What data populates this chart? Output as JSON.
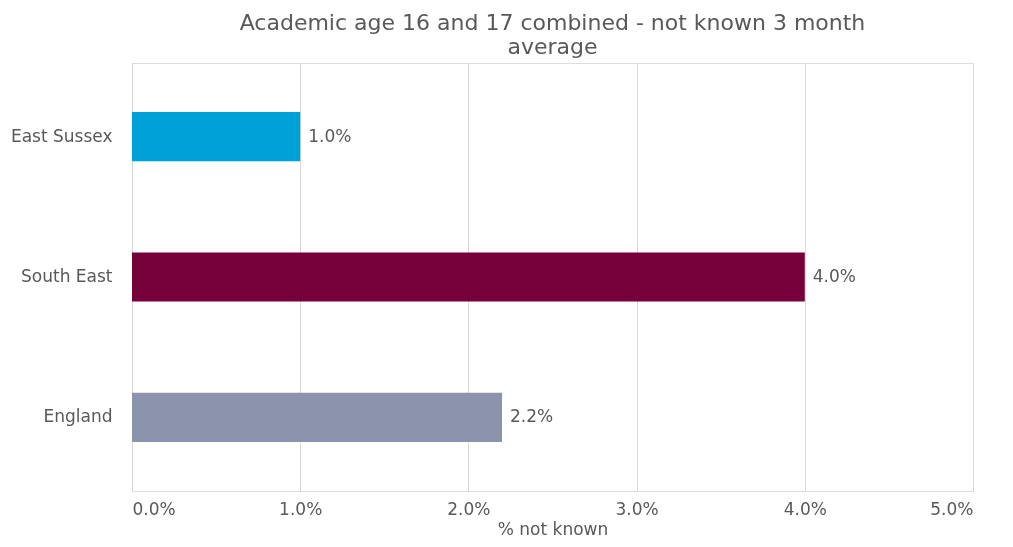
{
  "chart_data": {
    "type": "bar",
    "orientation": "horizontal",
    "title": "Academic age 16 and 17 combined  - not known 3 month average",
    "xlabel": "% not known",
    "categories": [
      "East Sussex",
      "South East",
      "England"
    ],
    "values": [
      1.0,
      4.0,
      2.2
    ],
    "colors": [
      "#00a0d8",
      "#75003a",
      "#8b93ad"
    ],
    "value_labels": [
      "1.0%",
      "4.0%",
      "2.2%"
    ],
    "xlim": [
      0,
      5
    ],
    "xticks": [
      {
        "value": 0,
        "label": "0.0%"
      },
      {
        "value": 1,
        "label": "1.0%"
      },
      {
        "value": 2,
        "label": "2.0%"
      },
      {
        "value": 3,
        "label": "3.0%"
      },
      {
        "value": 4,
        "label": "4.0%"
      },
      {
        "value": 5,
        "label": "5.0%"
      }
    ],
    "grid": "x"
  }
}
